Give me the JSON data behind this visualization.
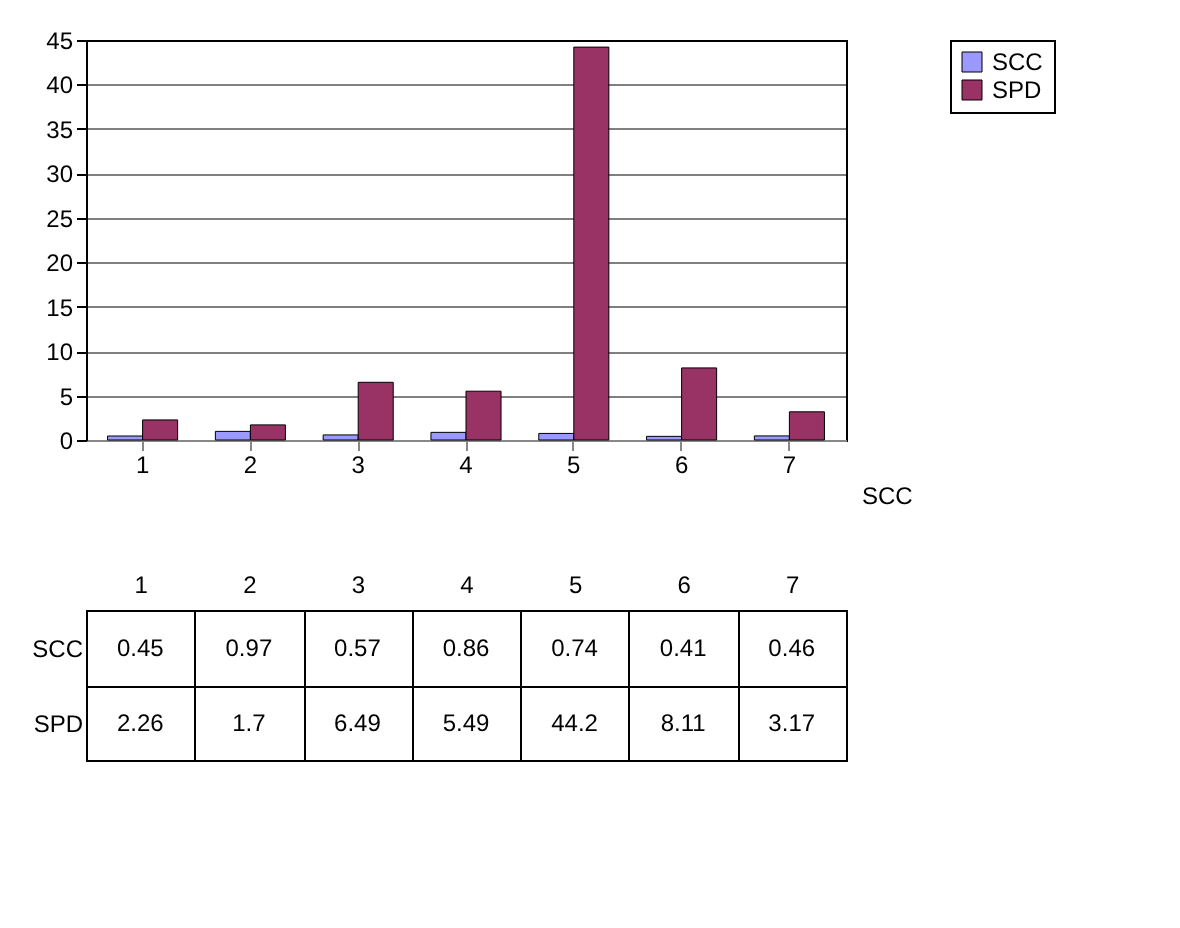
{
  "chart_data": {
    "type": "bar",
    "categories": [
      "1",
      "2",
      "3",
      "4",
      "5",
      "6",
      "7"
    ],
    "series": [
      {
        "name": "SCC",
        "color": "#9999ff",
        "values": [
          0.45,
          0.97,
          0.57,
          0.86,
          0.74,
          0.41,
          0.46
        ]
      },
      {
        "name": "SPD",
        "color": "#993366",
        "values": [
          2.26,
          1.7,
          6.49,
          5.49,
          44.2,
          8.11,
          3.17
        ]
      }
    ],
    "ylim": [
      0,
      45
    ],
    "yticks": [
      0,
      5,
      10,
      15,
      20,
      25,
      30,
      35,
      40,
      45
    ],
    "grid": "y",
    "legend": "right",
    "data_labels": true,
    "annotations": [
      "SCC"
    ]
  }
}
